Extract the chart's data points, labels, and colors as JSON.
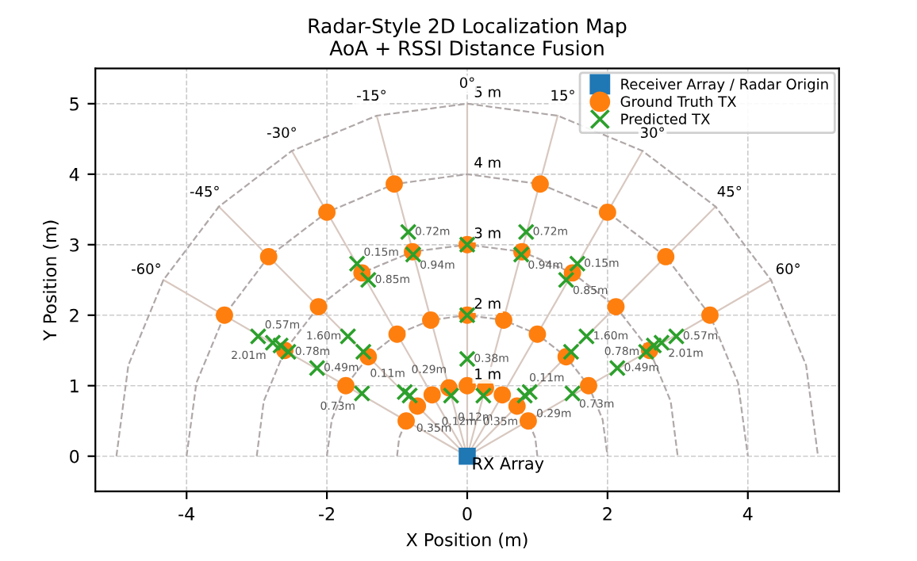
{
  "chart_data": {
    "type": "scatter",
    "title": "Radar-Style 2D Localization Map\nAoA + RSSI Distance Fusion",
    "xlabel": "X Position (m)",
    "ylabel": "Y Position (m)",
    "xlim": [
      -5.3,
      5.3
    ],
    "ylim": [
      -0.5,
      5.5
    ],
    "xticks": [
      -4,
      -2,
      0,
      2,
      4
    ],
    "yticks": [
      0,
      1,
      2,
      3,
      4,
      5
    ],
    "grid": true,
    "legend": "top right",
    "series": [
      {
        "type": "line",
        "line_style": "solid",
        "marker": "none",
        "color": "#d8c8c0",
        "x": [
          0,
          -4.33,
          null,
          0,
          -3.54,
          null,
          0,
          -2.5,
          null,
          0,
          -1.29,
          null,
          0,
          0,
          null,
          0,
          1.29,
          null,
          0,
          2.5,
          null,
          0,
          3.54,
          null,
          0,
          4.33
        ],
        "values": [
          0,
          2.5,
          null,
          0,
          3.54,
          null,
          0,
          4.33,
          null,
          0,
          4.83,
          null,
          0,
          5,
          null,
          0,
          4.83,
          null,
          0,
          4.33,
          null,
          0,
          3.54,
          null,
          0,
          2.5
        ]
      },
      {
        "type": "line",
        "line_style": "dashed",
        "marker": "none",
        "color": "#b0a8a8",
        "x": [
          -1,
          -0.97,
          -0.87,
          -0.71,
          -0.5,
          -0.26,
          0,
          0.26,
          0.5,
          0.71,
          0.87,
          0.97,
          1,
          null,
          -2,
          -1.93,
          -1.73,
          -1.41,
          -1,
          -0.52,
          0,
          0.52,
          1,
          1.41,
          1.73,
          1.93,
          2,
          null,
          -3,
          -2.9,
          -2.6,
          -2.12,
          -1.5,
          -0.78,
          0,
          0.78,
          1.5,
          2.12,
          2.6,
          2.9,
          3,
          null,
          -4,
          -3.86,
          -3.46,
          -2.83,
          -2,
          -1.04,
          0,
          1.04,
          2,
          2.83,
          3.46,
          3.86,
          4,
          null,
          -5,
          -4.83,
          -4.33,
          -3.54,
          -2.5,
          -1.29,
          0,
          1.29,
          2.5,
          3.54,
          4.33,
          4.83,
          5
        ],
        "values": [
          0,
          0.26,
          0.5,
          0.71,
          0.87,
          0.97,
          1,
          0.97,
          0.87,
          0.71,
          0.5,
          0.26,
          0,
          null,
          0,
          0.52,
          1,
          1.41,
          1.73,
          1.93,
          2,
          1.93,
          1.73,
          1.41,
          1,
          0.52,
          0,
          null,
          0,
          0.78,
          1.5,
          2.12,
          2.6,
          2.9,
          3,
          2.9,
          2.6,
          2.12,
          1.5,
          0.78,
          0,
          null,
          0,
          1.04,
          2,
          2.83,
          3.46,
          3.86,
          4,
          3.86,
          3.46,
          2.83,
          2,
          1.04,
          0,
          null,
          0,
          1.29,
          2.5,
          3.54,
          4.33,
          4.83,
          5,
          4.83,
          4.33,
          3.54,
          2.5,
          1.29,
          0
        ]
      },
      {
        "name": "Receiver Array / Radar Origin",
        "marker": "square",
        "color": "#1f77b4",
        "x": [
          0
        ],
        "values": [
          0
        ]
      },
      {
        "name": "Ground Truth TX",
        "marker": "circle",
        "color": "#ff7f0e",
        "x": [
          -0.87,
          -0.71,
          -0.5,
          -0.26,
          0,
          0.26,
          0.5,
          0.71,
          0.87,
          -1.73,
          -1.41,
          -1,
          -0.52,
          0,
          0.52,
          1,
          1.41,
          1.73,
          -2.6,
          -2.12,
          -1.5,
          -0.78,
          0,
          0.78,
          1.5,
          2.12,
          2.6,
          -3.46,
          -2.83,
          -2,
          -1.04,
          1.04,
          2,
          2.83,
          3.46
        ],
        "values": [
          0.5,
          0.71,
          0.87,
          0.97,
          1,
          0.97,
          0.87,
          0.71,
          0.5,
          1,
          1.41,
          1.73,
          1.93,
          2,
          1.93,
          1.73,
          1.41,
          1,
          1.5,
          2.12,
          2.6,
          2.9,
          3,
          2.9,
          2.6,
          2.12,
          1.5,
          2,
          2.83,
          3.46,
          3.86,
          3.86,
          3.46,
          2.83,
          2
        ]
      },
      {
        "name": "Predicted TX",
        "marker": "cross",
        "color": "#2ca02c",
        "x": [
          -0.84,
          -0.77,
          -1.57,
          -1.41,
          -2.98,
          -2.77,
          -2.66,
          -2.55,
          -2.14,
          -1.7,
          -1.48,
          -1.5,
          -0.89,
          -0.82,
          -0.23,
          0,
          0,
          0,
          0.84,
          0.77,
          1.57,
          1.41,
          2.98,
          2.77,
          2.66,
          2.55,
          2.14,
          1.7,
          1.48,
          1.5,
          0.89,
          0.82,
          0.23
        ],
        "values": [
          3.18,
          2.86,
          2.73,
          2.5,
          1.7,
          1.61,
          1.57,
          1.48,
          1.25,
          1.7,
          1.48,
          0.89,
          0.91,
          0.86,
          0.86,
          3,
          2,
          1.38,
          3.18,
          2.86,
          2.73,
          2.5,
          1.7,
          1.61,
          1.57,
          1.48,
          1.25,
          1.7,
          1.48,
          0.89,
          0.91,
          0.86,
          0.86
        ]
      }
    ],
    "annotations": [
      {
        "text": "RX Array",
        "x": 0,
        "y": 0
      },
      {
        "text": "1 m",
        "x": 0,
        "y": 1
      },
      {
        "text": "2 m",
        "x": 0,
        "y": 2
      },
      {
        "text": "3 m",
        "x": 0,
        "y": 3
      },
      {
        "text": "4 m",
        "x": 0,
        "y": 4
      },
      {
        "text": "5 m",
        "x": 0,
        "y": 5
      },
      {
        "text": "-60°",
        "x": -4.33,
        "y": 2.5
      },
      {
        "text": "-45°",
        "x": -3.54,
        "y": 3.54
      },
      {
        "text": "-30°",
        "x": -2.5,
        "y": 4.33
      },
      {
        "text": "-15°",
        "x": -1.29,
        "y": 4.83
      },
      {
        "text": "0°",
        "x": 0,
        "y": 5
      },
      {
        "text": "15°",
        "x": 1.29,
        "y": 4.83
      },
      {
        "text": "30°",
        "x": 2.5,
        "y": 4.33
      },
      {
        "text": "45°",
        "x": 3.54,
        "y": 3.54
      },
      {
        "text": "60°",
        "x": 4.33,
        "y": 2.5
      },
      {
        "text": "0.72m",
        "x": -0.84,
        "y": 3.18
      },
      {
        "text": "0.94m",
        "x": -0.77,
        "y": 2.86
      },
      {
        "text": "0.15m",
        "x": -1.57,
        "y": 2.73
      },
      {
        "text": "0.85m",
        "x": -1.41,
        "y": 2.5
      },
      {
        "text": "0.57m",
        "x": -2.98,
        "y": 1.7
      },
      {
        "text": "2.01m",
        "x": -2.77,
        "y": 1.61
      },
      {
        "text": "0.78m",
        "x": -2.55,
        "y": 1.48
      },
      {
        "text": "0.49m",
        "x": -2.14,
        "y": 1.25
      },
      {
        "text": "1.60m",
        "x": -1.7,
        "y": 1.7
      },
      {
        "text": "0.11m",
        "x": -1.48,
        "y": 1.48
      },
      {
        "text": "0.73m",
        "x": -1.5,
        "y": 0.89
      },
      {
        "text": "0.29m",
        "x": -0.89,
        "y": 0.91
      },
      {
        "text": "0.35m",
        "x": -0.82,
        "y": 0.86
      },
      {
        "text": "0.12m",
        "x": -0.23,
        "y": 0.86
      },
      {
        "text": "0.38m",
        "x": 0,
        "y": 1.38
      },
      {
        "text": "0.72m",
        "x": 0.84,
        "y": 3.18
      },
      {
        "text": "0.94m",
        "x": 0.77,
        "y": 2.86
      },
      {
        "text": "0.15m",
        "x": 1.57,
        "y": 2.73
      },
      {
        "text": "0.85m",
        "x": 1.41,
        "y": 2.5
      },
      {
        "text": "0.57m",
        "x": 2.98,
        "y": 1.7
      },
      {
        "text": "2.01m",
        "x": 2.77,
        "y": 1.61
      },
      {
        "text": "0.78m",
        "x": 2.55,
        "y": 1.48
      },
      {
        "text": "0.49m",
        "x": 2.14,
        "y": 1.25
      },
      {
        "text": "1.60m",
        "x": 1.7,
        "y": 1.7
      },
      {
        "text": "0.11m",
        "x": 1.48,
        "y": 1.48
      },
      {
        "text": "0.73m",
        "x": 1.5,
        "y": 0.89
      },
      {
        "text": "0.29m",
        "x": 0.89,
        "y": 0.91
      },
      {
        "text": "0.35m",
        "x": 0.82,
        "y": 0.86
      },
      {
        "text": "0.12m",
        "x": 0.23,
        "y": 0.86
      }
    ]
  }
}
